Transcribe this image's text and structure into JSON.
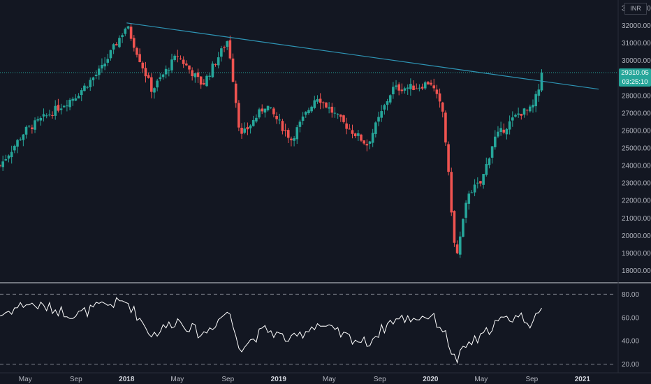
{
  "currency_badge": "INR",
  "price_label": {
    "value": "29310.05",
    "countdown": "03:25:10"
  },
  "colors": {
    "background": "#131722",
    "up": "#26a69a",
    "down": "#ef5350",
    "trendline": "#2e95b5",
    "rsi_line": "#ffffff",
    "price_label_bg": "#26a69a",
    "dotted_price_line": "#26a69a"
  },
  "chart_data": [
    {
      "type": "candlestick",
      "title": "",
      "currency": "INR",
      "x_tick_labels": [
        "May",
        "Sep",
        "2018",
        "May",
        "Sep",
        "2019",
        "May",
        "Sep",
        "2020",
        "May",
        "Sep",
        "2021"
      ],
      "y_tick_labels": [
        "18000.00",
        "19000.00",
        "20000.00",
        "21000.00",
        "22000.00",
        "23000.00",
        "24000.00",
        "25000.00",
        "26000.00",
        "27000.00",
        "28000.00",
        "29000.00",
        "30000.00",
        "31000.00",
        "32000.00",
        "33000.00"
      ],
      "ylim": [
        17500,
        33300
      ],
      "last_price": 29310.05,
      "trendline": {
        "from": {
          "x": "2018-01",
          "y": 32150
        },
        "to": {
          "x": "2020-10",
          "y": 28800
        }
      },
      "series_shape": [
        {
          "x": "2017-03",
          "y": 24000
        },
        {
          "x": "2017-05",
          "y": 26000
        },
        {
          "x": "2017-07",
          "y": 27000
        },
        {
          "x": "2017-09",
          "y": 28000
        },
        {
          "x": "2017-11",
          "y": 29500
        },
        {
          "x": "2018-01",
          "y": 32000
        },
        {
          "x": "2018-03",
          "y": 28300
        },
        {
          "x": "2018-05",
          "y": 30300
        },
        {
          "x": "2018-07",
          "y": 28600
        },
        {
          "x": "2018-09",
          "y": 31200
        },
        {
          "x": "2018-10",
          "y": 25600
        },
        {
          "x": "2018-12",
          "y": 27500
        },
        {
          "x": "2019-02",
          "y": 25500
        },
        {
          "x": "2019-04",
          "y": 28000
        },
        {
          "x": "2019-06",
          "y": 26500
        },
        {
          "x": "2019-08",
          "y": 25200
        },
        {
          "x": "2019-10",
          "y": 28400
        },
        {
          "x": "2019-12",
          "y": 28500
        },
        {
          "x": "2020-01",
          "y": 28800
        },
        {
          "x": "2020-02",
          "y": 27000
        },
        {
          "x": "2020-03",
          "y": 18500
        },
        {
          "x": "2020-04",
          "y": 22500
        },
        {
          "x": "2020-05",
          "y": 23000
        },
        {
          "x": "2020-06",
          "y": 25500
        },
        {
          "x": "2020-08",
          "y": 27000
        },
        {
          "x": "2020-09",
          "y": 27200
        },
        {
          "x": "2020-10",
          "y": 29310
        }
      ]
    },
    {
      "type": "line",
      "title": "",
      "y_tick_labels": [
        "80.00",
        "60.00",
        "40.00",
        "20.00"
      ],
      "ylim": [
        15,
        88
      ],
      "reference_lines": [
        80,
        20
      ],
      "series_shape": [
        {
          "x": "2017-03",
          "y": 62
        },
        {
          "x": "2017-05",
          "y": 72
        },
        {
          "x": "2017-07",
          "y": 68
        },
        {
          "x": "2017-09",
          "y": 62
        },
        {
          "x": "2017-11",
          "y": 70
        },
        {
          "x": "2018-01",
          "y": 74
        },
        {
          "x": "2018-03",
          "y": 45
        },
        {
          "x": "2018-05",
          "y": 58
        },
        {
          "x": "2018-07",
          "y": 45
        },
        {
          "x": "2018-09",
          "y": 66
        },
        {
          "x": "2018-10",
          "y": 34
        },
        {
          "x": "2018-12",
          "y": 50
        },
        {
          "x": "2019-02",
          "y": 40
        },
        {
          "x": "2019-04",
          "y": 55
        },
        {
          "x": "2019-06",
          "y": 45
        },
        {
          "x": "2019-08",
          "y": 38
        },
        {
          "x": "2019-10",
          "y": 58
        },
        {
          "x": "2019-12",
          "y": 60
        },
        {
          "x": "2020-01",
          "y": 62
        },
        {
          "x": "2020-02",
          "y": 50
        },
        {
          "x": "2020-03",
          "y": 22
        },
        {
          "x": "2020-04",
          "y": 38
        },
        {
          "x": "2020-05",
          "y": 42
        },
        {
          "x": "2020-06",
          "y": 55
        },
        {
          "x": "2020-08",
          "y": 62
        },
        {
          "x": "2020-09",
          "y": 55
        },
        {
          "x": "2020-10",
          "y": 67
        }
      ]
    }
  ]
}
